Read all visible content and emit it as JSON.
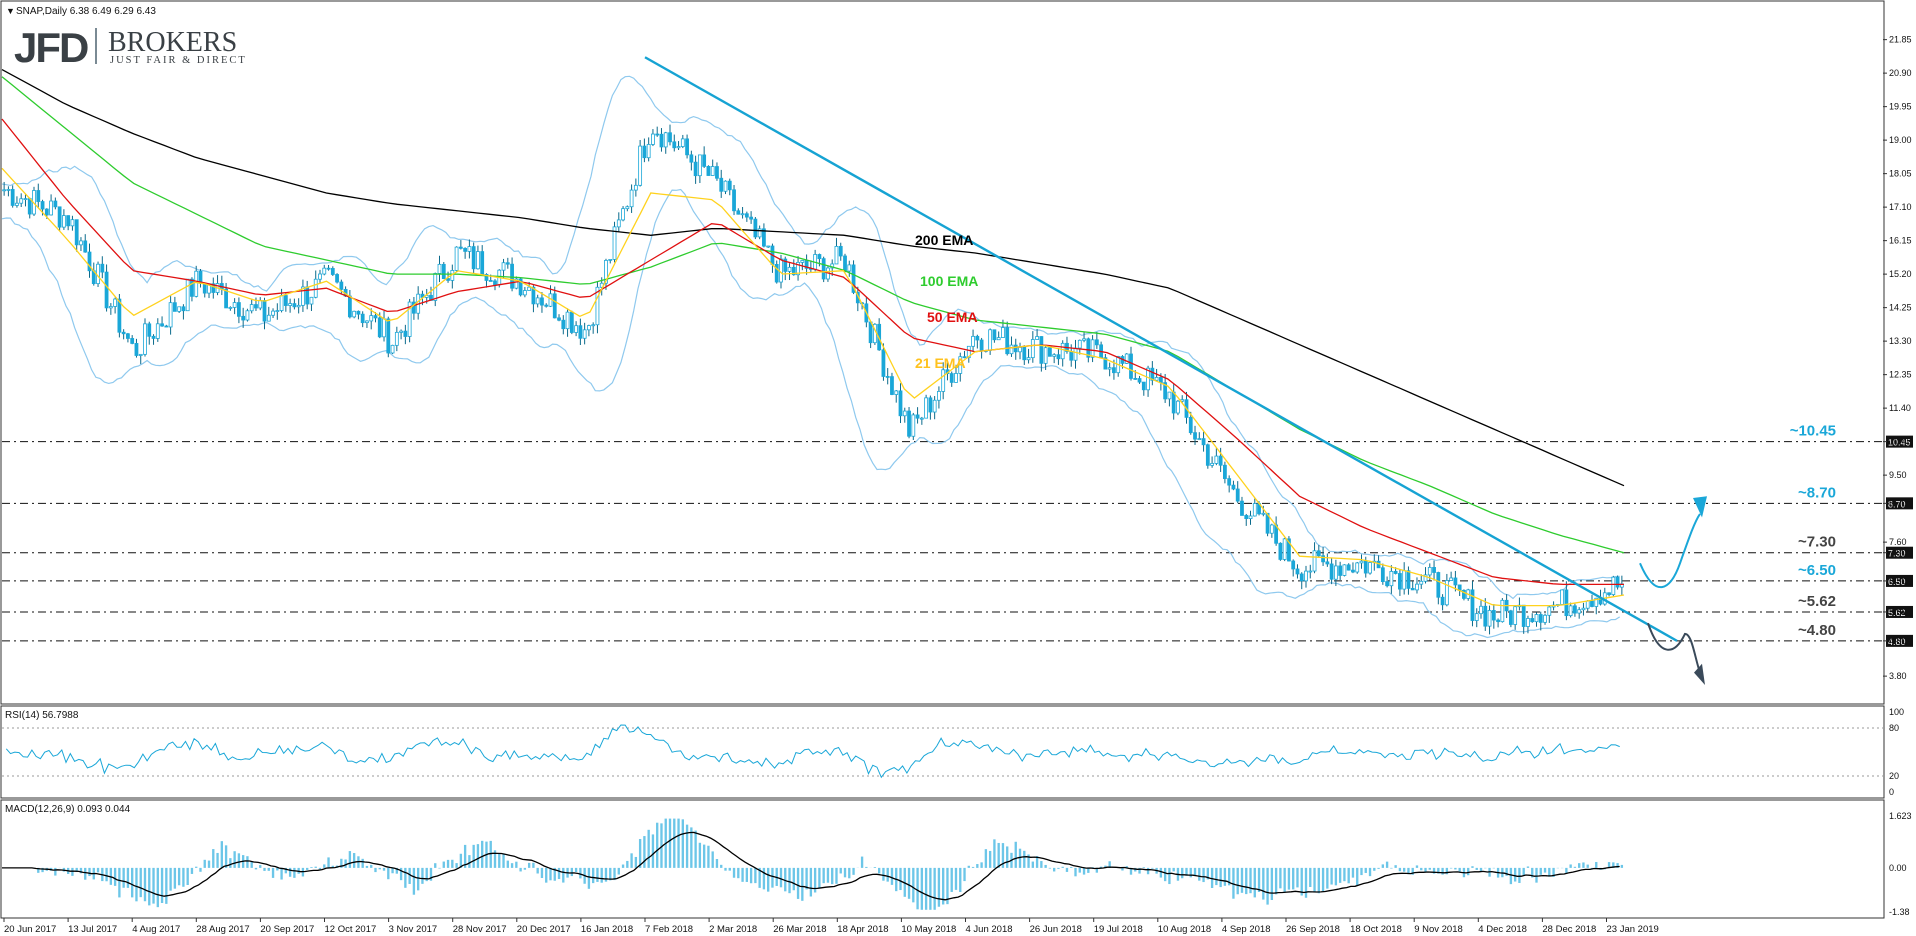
{
  "header": {
    "symbol_line": "SNAP,Daily  6.38 6.49 6.29 6.43",
    "menu_glyph": "▼"
  },
  "brand": {
    "logo": "JFD",
    "name": "BROKERS",
    "tagline": "JUST FAIR & DIRECT"
  },
  "colors": {
    "candle": "#1aa7d8",
    "bollinger": "#8fc9ee",
    "ema200": "#000000",
    "ema100": "#2ecc2e",
    "ema50": "#e01010",
    "ema21": "#ffd21e",
    "trendline": "#16a3d3",
    "level_label": "#1aa7d8",
    "arrow_up": "#1aa7d8",
    "arrow_down": "#3a4a5a",
    "grid_line": "#111111",
    "rsi": "#1aa7d8",
    "macd_hist": "#6cc6e8",
    "macd_signal": "#000000"
  },
  "main_axis": {
    "ticks": [
      "21.85",
      "20.90",
      "19.95",
      "19.00",
      "18.05",
      "17.10",
      "16.15",
      "15.20",
      "14.25",
      "13.30",
      "12.35",
      "11.40",
      "10.45",
      "9.50",
      "8.70",
      "7.60",
      "7.30",
      "6.50",
      "5.62",
      "4.80",
      "3.80"
    ]
  },
  "levels": [
    {
      "value": 10.45,
      "label": "~10.45",
      "tag": "10.45"
    },
    {
      "value": 8.7,
      "label": "~8.70",
      "tag": "8.70"
    },
    {
      "value": 7.3,
      "label": "~7.30",
      "tag": "7.30"
    },
    {
      "value": 6.5,
      "label": "~6.50",
      "tag": "6.50"
    },
    {
      "value": 5.62,
      "label": "~5.62",
      "tag": "5.62"
    },
    {
      "value": 4.8,
      "label": "~4.80",
      "tag": "4.80"
    }
  ],
  "ema_labels": {
    "ema200": "200 EMA",
    "ema100": "100 EMA",
    "ema50": "50 EMA",
    "ema21": "21 EMA"
  },
  "rsi": {
    "label": "RSI(14) 56.7988",
    "ticks": [
      "100",
      "80",
      "20",
      "0"
    ]
  },
  "macd": {
    "label": "MACD(12,26,9) 0.093 0.044",
    "ticks": [
      "1.623",
      "0.00",
      "-1.38"
    ]
  },
  "x_axis": {
    "labels": [
      "20 Jun 2017",
      "13 Jul 2017",
      "4 Aug 2017",
      "28 Aug 2017",
      "20 Sep 2017",
      "12 Oct 2017",
      "3 Nov 2017",
      "28 Nov 2017",
      "20 Dec 2017",
      "16 Jan 2018",
      "7 Feb 2018",
      "2 Mar 2018",
      "26 Mar 2018",
      "18 Apr 2018",
      "10 May 2018",
      "4 Jun 2018",
      "26 Jun 2018",
      "19 Jul 2018",
      "10 Aug 2018",
      "4 Sep 2018",
      "26 Sep 2018",
      "18 Oct 2018",
      "9 Nov 2018",
      "4 Dec 2018",
      "28 Dec 2018",
      "23 Jan 2019"
    ]
  },
  "chart_data": {
    "type": "line",
    "title": "SNAP,Daily",
    "ohlc_last": {
      "open": 6.38,
      "high": 6.49,
      "low": 6.29,
      "close": 6.43
    },
    "price_range": [
      3.8,
      21.85
    ],
    "x": [
      "20 Jun 2017",
      "13 Jul 2017",
      "4 Aug 2017",
      "28 Aug 2017",
      "20 Sep 2017",
      "12 Oct 2017",
      "3 Nov 2017",
      "28 Nov 2017",
      "20 Dec 2017",
      "16 Jan 2018",
      "7 Feb 2018",
      "2 Mar 2018",
      "26 Mar 2018",
      "18 Apr 2018",
      "10 May 2018",
      "4 Jun 2018",
      "26 Jun 2018",
      "19 Jul 2018",
      "10 Aug 2018",
      "4 Sep 2018",
      "26 Sep 2018",
      "18 Oct 2018",
      "9 Nov 2018",
      "4 Dec 2018",
      "28 Dec 2018",
      "23 Jan 2019"
    ],
    "series": [
      {
        "name": "SNAP",
        "values": [
          17.6,
          16.8,
          13.0,
          15.0,
          14.0,
          15.0,
          13.3,
          15.8,
          15.0,
          13.6,
          19.5,
          17.8,
          15.2,
          15.6,
          10.7,
          13.5,
          13.1,
          12.9,
          11.8,
          9.0,
          6.9,
          7.0,
          6.5,
          5.5,
          5.8,
          6.4
        ]
      },
      {
        "name": "200 EMA",
        "values": [
          21.0,
          20.0,
          19.2,
          18.5,
          18.0,
          17.5,
          17.2,
          17.0,
          16.8,
          16.5,
          16.3,
          16.5,
          16.4,
          16.3,
          16.0,
          15.8,
          15.5,
          15.2,
          14.8,
          14.0,
          13.2,
          12.4,
          11.6,
          10.8,
          10.0,
          9.2
        ]
      },
      {
        "name": "100 EMA",
        "values": [
          20.8,
          19.3,
          17.8,
          16.9,
          16.0,
          15.6,
          15.2,
          15.2,
          15.1,
          14.9,
          15.4,
          16.1,
          15.8,
          15.3,
          14.4,
          13.9,
          13.7,
          13.5,
          13.0,
          11.9,
          10.8,
          9.9,
          9.2,
          8.4,
          7.8,
          7.3
        ]
      },
      {
        "name": "50 EMA",
        "values": [
          19.6,
          17.3,
          15.3,
          15.0,
          14.6,
          14.8,
          14.1,
          14.7,
          15.0,
          14.5,
          15.6,
          16.7,
          15.6,
          15.1,
          13.4,
          13.0,
          13.2,
          13.0,
          12.2,
          10.6,
          8.9,
          8.0,
          7.3,
          6.6,
          6.4,
          6.4
        ]
      },
      {
        "name": "21 EMA",
        "values": [
          18.2,
          16.2,
          14.0,
          15.0,
          14.4,
          15.0,
          13.8,
          15.3,
          15.0,
          13.9,
          17.5,
          17.3,
          15.2,
          15.3,
          11.6,
          13.0,
          13.2,
          12.8,
          12.0,
          9.6,
          7.2,
          7.1,
          6.6,
          5.8,
          5.8,
          6.1
        ]
      }
    ],
    "rsi_last": 56.7988,
    "rsi_range": [
      0,
      100
    ],
    "macd_last": {
      "macd": 0.093,
      "signal": 0.044
    },
    "macd_range": [
      -1.38,
      1.623
    ],
    "grid": false,
    "legend": "none"
  }
}
